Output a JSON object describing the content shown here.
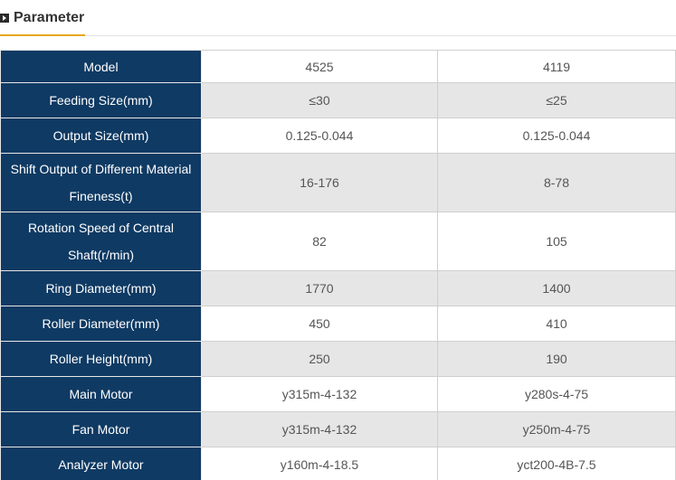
{
  "header": {
    "title": "Parameter",
    "icon": "play-square-icon",
    "accent_color": "#e6a817"
  },
  "table": {
    "label_bg_color": "#0f3a63",
    "rows": [
      {
        "label": "Model",
        "values": [
          "4525",
          "4119"
        ]
      },
      {
        "label": "Feeding Size(mm)",
        "values": [
          "≤30",
          "≤25"
        ]
      },
      {
        "label": "Output Size(mm)",
        "values": [
          "0.125-0.044",
          "0.125-0.044"
        ]
      },
      {
        "label": "Shift Output of Different Material Fineness(t)",
        "values": [
          "16-176",
          "8-78"
        ]
      },
      {
        "label": "Rotation Speed of Central Shaft(r/min)",
        "values": [
          "82",
          "105"
        ]
      },
      {
        "label": "Ring Diameter(mm)",
        "values": [
          "1770",
          "1400"
        ]
      },
      {
        "label": "Roller Diameter(mm)",
        "values": [
          "450",
          "410"
        ]
      },
      {
        "label": "Roller Height(mm)",
        "values": [
          "250",
          "190"
        ]
      },
      {
        "label": "Main Motor",
        "values": [
          "y315m-4-132",
          "y280s-4-75"
        ]
      },
      {
        "label": "Fan Motor",
        "values": [
          "y315m-4-132",
          "y250m-4-75"
        ]
      },
      {
        "label": "Analyzer Motor",
        "values": [
          "y160m-4-18.5",
          "yct200-4B-7.5"
        ]
      }
    ]
  }
}
